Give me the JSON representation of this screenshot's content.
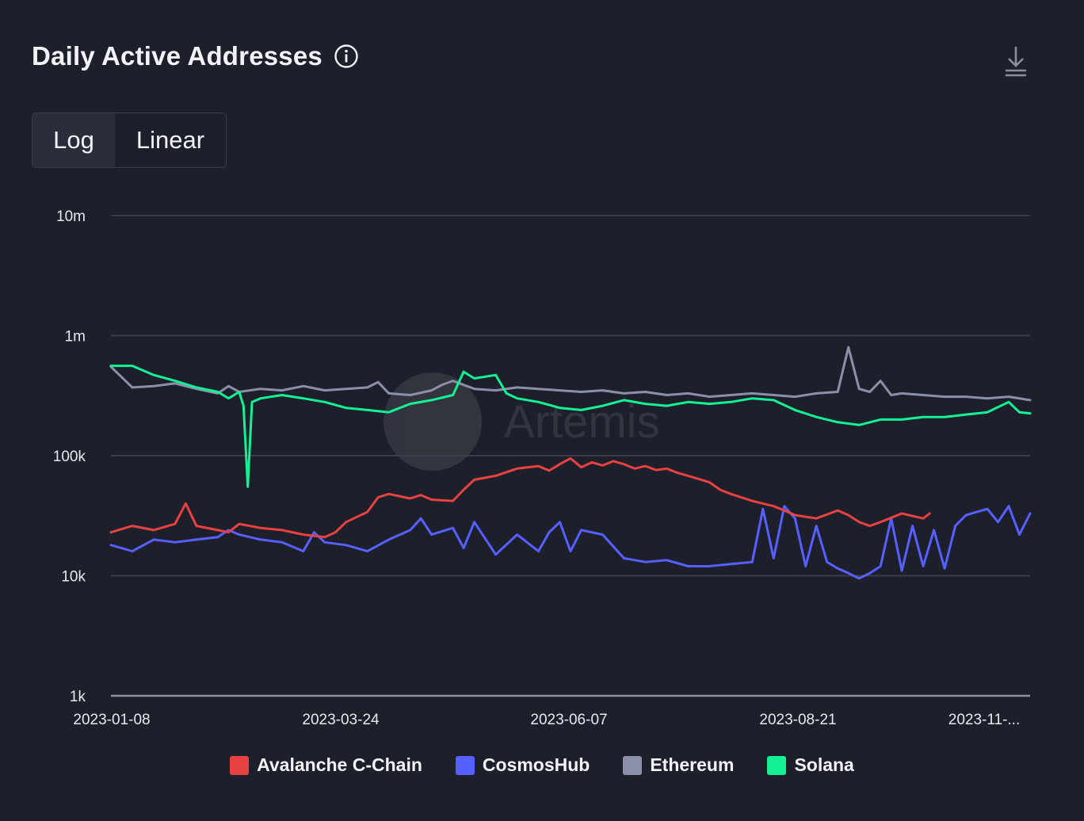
{
  "header": {
    "title": "Daily Active Addresses",
    "info_icon": "info-icon",
    "download_icon": "download-icon"
  },
  "scale_toggle": {
    "options": [
      "Log",
      "Linear"
    ],
    "selected": "Log"
  },
  "watermark": {
    "text": "Artemis"
  },
  "chart_data": {
    "type": "line",
    "title": "Daily Active Addresses",
    "yscale": "log",
    "ylim": [
      1000,
      10000000
    ],
    "yticks": [
      {
        "value": 10000000,
        "label": "10m"
      },
      {
        "value": 1000000,
        "label": "1m"
      },
      {
        "value": 100000,
        "label": "100k"
      },
      {
        "value": 10000,
        "label": "10k"
      },
      {
        "value": 1000,
        "label": "1k"
      }
    ],
    "xticks": [
      "2023-01-08",
      "2023-03-24",
      "2023-06-07",
      "2023-08-21",
      "2023-11-..."
    ],
    "x_start": "2023-01-08",
    "x_end": "2023-11-19",
    "x_days": 315,
    "grid": true,
    "legend_position": "bottom",
    "series": [
      {
        "name": "Avalanche C-Chain",
        "color": "#e84142",
        "points": [
          [
            0,
            23000
          ],
          [
            10,
            26000
          ],
          [
            20,
            24000
          ],
          [
            30,
            27000
          ],
          [
            35,
            40000
          ],
          [
            40,
            26000
          ],
          [
            50,
            24000
          ],
          [
            55,
            23000
          ],
          [
            60,
            27000
          ],
          [
            70,
            25000
          ],
          [
            80,
            24000
          ],
          [
            90,
            22000
          ],
          [
            100,
            21000
          ],
          [
            105,
            23000
          ],
          [
            110,
            28000
          ],
          [
            120,
            34000
          ],
          [
            125,
            45000
          ],
          [
            130,
            48000
          ],
          [
            140,
            44000
          ],
          [
            145,
            47000
          ],
          [
            150,
            43000
          ],
          [
            160,
            42000
          ],
          [
            165,
            52000
          ],
          [
            170,
            63000
          ],
          [
            180,
            68000
          ],
          [
            190,
            78000
          ],
          [
            200,
            82000
          ],
          [
            205,
            75000
          ],
          [
            210,
            85000
          ],
          [
            215,
            95000
          ],
          [
            220,
            80000
          ],
          [
            225,
            88000
          ],
          [
            230,
            83000
          ],
          [
            235,
            90000
          ],
          [
            240,
            85000
          ],
          [
            245,
            78000
          ],
          [
            250,
            82000
          ],
          [
            255,
            76000
          ],
          [
            260,
            78000
          ],
          [
            265,
            72000
          ],
          [
            270,
            68000
          ],
          [
            275,
            64000
          ],
          [
            280,
            60000
          ],
          [
            285,
            52000
          ],
          [
            290,
            48000
          ],
          [
            300,
            42000
          ],
          [
            310,
            38000
          ],
          [
            315,
            35000
          ],
          [
            320,
            32000
          ],
          [
            325,
            31000
          ],
          [
            330,
            30000
          ],
          [
            340,
            35000
          ],
          [
            345,
            32000
          ],
          [
            350,
            28000
          ],
          [
            355,
            26000
          ],
          [
            360,
            28000
          ],
          [
            370,
            33000
          ],
          [
            380,
            30000
          ],
          [
            383,
            33000
          ]
        ]
      },
      {
        "name": "CosmosHub",
        "color": "#5560ff",
        "points": [
          [
            0,
            18000
          ],
          [
            10,
            16000
          ],
          [
            20,
            20000
          ],
          [
            30,
            19000
          ],
          [
            40,
            20000
          ],
          [
            50,
            21000
          ],
          [
            55,
            24000
          ],
          [
            60,
            22000
          ],
          [
            70,
            20000
          ],
          [
            80,
            19000
          ],
          [
            90,
            16000
          ],
          [
            95,
            23000
          ],
          [
            100,
            19000
          ],
          [
            110,
            18000
          ],
          [
            120,
            16000
          ],
          [
            130,
            20000
          ],
          [
            140,
            24000
          ],
          [
            145,
            30000
          ],
          [
            150,
            22000
          ],
          [
            160,
            25000
          ],
          [
            165,
            17000
          ],
          [
            170,
            28000
          ],
          [
            180,
            15000
          ],
          [
            190,
            22000
          ],
          [
            200,
            16000
          ],
          [
            205,
            23000
          ],
          [
            210,
            28000
          ],
          [
            215,
            16000
          ],
          [
            220,
            24000
          ],
          [
            230,
            22000
          ],
          [
            240,
            14000
          ],
          [
            250,
            13000
          ],
          [
            260,
            13500
          ],
          [
            270,
            12000
          ],
          [
            280,
            12000
          ],
          [
            290,
            12500
          ],
          [
            300,
            13000
          ],
          [
            305,
            36000
          ],
          [
            310,
            14000
          ],
          [
            315,
            38000
          ],
          [
            320,
            30000
          ],
          [
            325,
            12000
          ],
          [
            330,
            26000
          ],
          [
            335,
            13000
          ],
          [
            340,
            11500
          ],
          [
            345,
            10500
          ],
          [
            350,
            9500
          ],
          [
            355,
            10500
          ],
          [
            360,
            12000
          ],
          [
            365,
            30000
          ],
          [
            370,
            11000
          ],
          [
            375,
            26000
          ],
          [
            380,
            12000
          ],
          [
            385,
            24000
          ],
          [
            390,
            11500
          ],
          [
            395,
            26000
          ],
          [
            400,
            32000
          ],
          [
            410,
            36000
          ],
          [
            415,
            28000
          ],
          [
            420,
            38000
          ],
          [
            425,
            22000
          ],
          [
            430,
            33000
          ]
        ]
      },
      {
        "name": "Ethereum",
        "color": "#8b90aa",
        "points": [
          [
            0,
            550000
          ],
          [
            10,
            370000
          ],
          [
            20,
            380000
          ],
          [
            30,
            400000
          ],
          [
            40,
            360000
          ],
          [
            50,
            330000
          ],
          [
            55,
            380000
          ],
          [
            60,
            340000
          ],
          [
            70,
            360000
          ],
          [
            80,
            350000
          ],
          [
            90,
            380000
          ],
          [
            100,
            350000
          ],
          [
            110,
            360000
          ],
          [
            120,
            370000
          ],
          [
            125,
            410000
          ],
          [
            130,
            330000
          ],
          [
            140,
            320000
          ],
          [
            150,
            350000
          ],
          [
            155,
            390000
          ],
          [
            160,
            420000
          ],
          [
            170,
            360000
          ],
          [
            180,
            350000
          ],
          [
            190,
            370000
          ],
          [
            200,
            360000
          ],
          [
            210,
            350000
          ],
          [
            220,
            340000
          ],
          [
            230,
            350000
          ],
          [
            240,
            330000
          ],
          [
            250,
            340000
          ],
          [
            260,
            320000
          ],
          [
            270,
            330000
          ],
          [
            280,
            310000
          ],
          [
            290,
            320000
          ],
          [
            300,
            330000
          ],
          [
            310,
            320000
          ],
          [
            320,
            310000
          ],
          [
            330,
            330000
          ],
          [
            340,
            340000
          ],
          [
            345,
            800000
          ],
          [
            350,
            360000
          ],
          [
            355,
            340000
          ],
          [
            360,
            420000
          ],
          [
            365,
            320000
          ],
          [
            370,
            330000
          ],
          [
            380,
            320000
          ],
          [
            390,
            310000
          ],
          [
            400,
            310000
          ],
          [
            410,
            300000
          ],
          [
            420,
            310000
          ],
          [
            430,
            290000
          ]
        ]
      },
      {
        "name": "Solana",
        "color": "#14f195",
        "points": [
          [
            0,
            560000
          ],
          [
            10,
            560000
          ],
          [
            20,
            470000
          ],
          [
            30,
            420000
          ],
          [
            40,
            370000
          ],
          [
            50,
            340000
          ],
          [
            55,
            300000
          ],
          [
            60,
            340000
          ],
          [
            62,
            260000
          ],
          [
            64,
            55000
          ],
          [
            66,
            280000
          ],
          [
            70,
            300000
          ],
          [
            80,
            320000
          ],
          [
            90,
            300000
          ],
          [
            100,
            280000
          ],
          [
            110,
            250000
          ],
          [
            120,
            240000
          ],
          [
            130,
            230000
          ],
          [
            140,
            270000
          ],
          [
            150,
            290000
          ],
          [
            160,
            320000
          ],
          [
            165,
            500000
          ],
          [
            170,
            440000
          ],
          [
            180,
            470000
          ],
          [
            185,
            330000
          ],
          [
            190,
            300000
          ],
          [
            200,
            280000
          ],
          [
            210,
            250000
          ],
          [
            220,
            240000
          ],
          [
            230,
            260000
          ],
          [
            240,
            290000
          ],
          [
            250,
            270000
          ],
          [
            260,
            260000
          ],
          [
            270,
            280000
          ],
          [
            280,
            270000
          ],
          [
            290,
            280000
          ],
          [
            300,
            300000
          ],
          [
            310,
            290000
          ],
          [
            320,
            240000
          ],
          [
            330,
            210000
          ],
          [
            340,
            190000
          ],
          [
            350,
            180000
          ],
          [
            360,
            200000
          ],
          [
            370,
            200000
          ],
          [
            380,
            210000
          ],
          [
            390,
            210000
          ],
          [
            400,
            220000
          ],
          [
            410,
            230000
          ],
          [
            420,
            280000
          ],
          [
            425,
            230000
          ],
          [
            430,
            225000
          ]
        ]
      }
    ]
  }
}
